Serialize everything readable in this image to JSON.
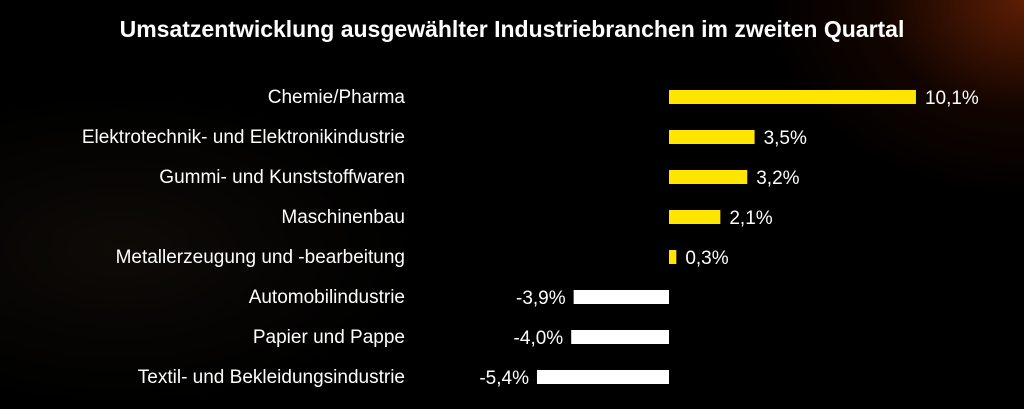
{
  "chart_data": {
    "type": "bar",
    "orientation": "horizontal",
    "title": "Umsatzentwicklung ausgewählter Industriebranchen im zweiten Quartal",
    "xlabel": "",
    "ylabel": "",
    "categories": [
      "Chemie/Pharma",
      "Elektrotechnik- und Elektronikindustrie",
      "Gummi- und Kunststoffwaren",
      "Maschinenbau",
      "Metallerzeugung und -bearbeitung",
      "Automobilindustrie",
      "Papier und Pappe",
      "Textil- und Bekleidungsindustrie"
    ],
    "values": [
      10.1,
      3.5,
      3.2,
      2.1,
      0.3,
      -3.9,
      -4.0,
      -5.4
    ],
    "value_labels": [
      "10,1%",
      "3,5%",
      "3,2%",
      "2,1%",
      "0,3%",
      "-3,9%",
      "-4,0%",
      "-5,4%"
    ],
    "grid": false,
    "colors": {
      "positive": "#FFE500",
      "negative": "#FFFFFF"
    }
  }
}
